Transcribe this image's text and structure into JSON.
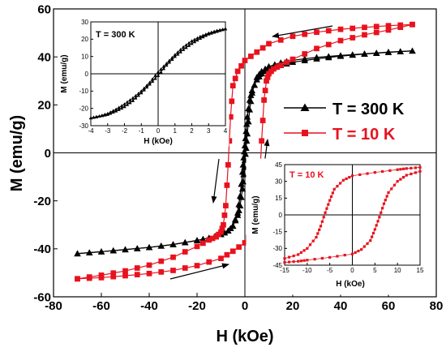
{
  "chart_data": [
    {
      "id": "main",
      "type": "line",
      "xlabel": "H (kOe)",
      "ylabel": "M (emu/g)",
      "xlim": [
        -80,
        80
      ],
      "ylim": [
        -60,
        60
      ],
      "xticks": [
        "-80",
        "-60",
        "-40",
        "-20",
        "0",
        "20",
        "40",
        "60",
        "80"
      ],
      "yticks": [
        "60",
        "40",
        "20",
        "0",
        "-20",
        "-40",
        "-60"
      ],
      "zero_lines": true,
      "grid": false,
      "legend_position": "right-middle",
      "series": [
        {
          "name": "T = 300 K",
          "color": "#000000",
          "marker": "triangle",
          "descending": [
            [
              70,
              42.5
            ],
            [
              60,
              42
            ],
            [
              50,
              41.3
            ],
            [
              40,
              40.6
            ],
            [
              30,
              39.8
            ],
            [
              20,
              38.6
            ],
            [
              15,
              37.6
            ],
            [
              10,
              36
            ],
            [
              7,
              34
            ],
            [
              5,
              31.5
            ],
            [
              3,
              25
            ],
            [
              2,
              18
            ],
            [
              1,
              8
            ],
            [
              0.5,
              2
            ],
            [
              0,
              -3
            ],
            [
              -0.5,
              -9
            ],
            [
              -1,
              -15
            ],
            [
              -2,
              -22
            ],
            [
              -3,
              -26
            ],
            [
              -5,
              -30.5
            ],
            [
              -7,
              -32.5
            ],
            [
              -10,
              -34
            ],
            [
              -15,
              -35.5
            ],
            [
              -20,
              -36.5
            ],
            [
              -30,
              -38.2
            ],
            [
              -40,
              -39.4
            ],
            [
              -50,
              -40.3
            ],
            [
              -60,
              -41.2
            ],
            [
              -70,
              -42
            ]
          ],
          "ascending": [
            [
              -70,
              -42
            ],
            [
              -60,
              -41.2
            ],
            [
              -50,
              -40.3
            ],
            [
              -40,
              -39.4
            ],
            [
              -30,
              -38.2
            ],
            [
              -20,
              -36.5
            ],
            [
              -15,
              -35.5
            ],
            [
              -10,
              -34
            ],
            [
              -7,
              -32.5
            ],
            [
              -5,
              -30.5
            ],
            [
              -3,
              -25
            ],
            [
              -2,
              -18
            ],
            [
              -1,
              -8
            ],
            [
              -0.5,
              -2
            ],
            [
              0,
              3
            ],
            [
              0.5,
              9
            ],
            [
              1,
              15
            ],
            [
              2,
              22
            ],
            [
              3,
              26
            ],
            [
              5,
              30.5
            ],
            [
              7,
              33
            ],
            [
              10,
              35
            ],
            [
              15,
              36.5
            ],
            [
              20,
              37.8
            ],
            [
              30,
              39.2
            ],
            [
              40,
              40.3
            ],
            [
              50,
              41.2
            ],
            [
              60,
              41.9
            ],
            [
              70,
              42.5
            ]
          ]
        },
        {
          "name": "T = 10 K",
          "color": "#e8121e",
          "marker": "square",
          "descending": [
            [
              70,
              53.5
            ],
            [
              60,
              53
            ],
            [
              50,
              52.3
            ],
            [
              40,
              51.5
            ],
            [
              30,
              50.3
            ],
            [
              20,
              48.6
            ],
            [
              10,
              45.5
            ],
            [
              5,
              42
            ],
            [
              0,
              38.5
            ],
            [
              -3,
              34
            ],
            [
              -5,
              28
            ],
            [
              -6,
              15
            ],
            [
              -7,
              -5
            ],
            [
              -8,
              -22
            ],
            [
              -9,
              -30
            ],
            [
              -10,
              -33
            ],
            [
              -12,
              -35
            ],
            [
              -15,
              -36.3
            ],
            [
              -20,
              -39
            ],
            [
              -30,
              -43.5
            ],
            [
              -40,
              -46.8
            ],
            [
              -50,
              -49.2
            ],
            [
              -60,
              -51
            ],
            [
              -70,
              -52.5
            ]
          ],
          "ascending": [
            [
              -70,
              -52.5
            ],
            [
              -60,
              -52
            ],
            [
              -50,
              -51.2
            ],
            [
              -40,
              -50.3
            ],
            [
              -30,
              -49
            ],
            [
              -20,
              -47
            ],
            [
              -10,
              -44
            ],
            [
              -5,
              -41
            ],
            [
              0,
              -37.5
            ],
            [
              3,
              -33
            ],
            [
              5,
              -27
            ],
            [
              6,
              -15
            ],
            [
              7,
              5
            ],
            [
              8,
              22
            ],
            [
              9,
              30
            ],
            [
              10,
              33
            ],
            [
              12,
              35
            ],
            [
              15,
              36.5
            ],
            [
              20,
              39
            ],
            [
              30,
              43.5
            ],
            [
              40,
              46.8
            ],
            [
              50,
              49.2
            ],
            [
              60,
              51.2
            ],
            [
              70,
              53.5
            ]
          ]
        }
      ],
      "legend": [
        {
          "label": "T = 300 K",
          "color": "#000000",
          "marker": "triangle"
        },
        {
          "label": "T = 10 K",
          "color": "#e8121e",
          "marker": "square"
        }
      ],
      "annotations": [
        "arrow top-right pointing left",
        "arrow bottom pointing right",
        "arrow left pointing down",
        "arrow right pointing up"
      ]
    },
    {
      "id": "inset_300K",
      "type": "line",
      "title": "T = 300 K",
      "xlabel": "H (kOe)",
      "ylabel": "M (emu/g)",
      "xlim": [
        -4,
        4
      ],
      "ylim": [
        -30,
        30
      ],
      "xticks": [
        "-4",
        "-3",
        "-2",
        "-1",
        "0",
        "1",
        "2",
        "3",
        "4"
      ],
      "yticks": [
        "30",
        "20",
        "10",
        "0",
        "-10",
        "-20",
        "-30"
      ],
      "series": [
        {
          "name": "T = 300 K",
          "color": "#000000",
          "marker": "triangle",
          "descending": [
            [
              4,
              26
            ],
            [
              3.5,
              25
            ],
            [
              3,
              23.5
            ],
            [
              2.5,
              21.5
            ],
            [
              2,
              19
            ],
            [
              1.5,
              15.5
            ],
            [
              1,
              11
            ],
            [
              0.5,
              6
            ],
            [
              0,
              1
            ],
            [
              -0.5,
              -5
            ],
            [
              -1,
              -10
            ],
            [
              -1.5,
              -14
            ],
            [
              -2,
              -17.5
            ],
            [
              -2.5,
              -20.5
            ],
            [
              -3,
              -23
            ],
            [
              -3.5,
              -24.5
            ],
            [
              -4,
              -25.5
            ]
          ],
          "ascending": [
            [
              -4,
              -25.5
            ],
            [
              -3.5,
              -24.5
            ],
            [
              -3,
              -23.5
            ],
            [
              -2.5,
              -21.5
            ],
            [
              -2,
              -19
            ],
            [
              -1.5,
              -15.5
            ],
            [
              -1,
              -11
            ],
            [
              -0.5,
              -6
            ],
            [
              0,
              -1
            ],
            [
              0.5,
              5
            ],
            [
              1,
              10
            ],
            [
              1.5,
              14
            ],
            [
              2,
              17.5
            ],
            [
              2.5,
              20.5
            ],
            [
              3,
              23
            ],
            [
              3.5,
              24.5
            ],
            [
              4,
              26
            ]
          ]
        }
      ]
    },
    {
      "id": "inset_10K",
      "type": "line",
      "title": "T = 10 K",
      "xlabel": "H (kOe)",
      "ylabel": "M (emu/g)",
      "xlim": [
        -15,
        15
      ],
      "ylim": [
        -45,
        45
      ],
      "xticks": [
        "-15",
        "-10",
        "-5",
        "0",
        "5",
        "10",
        "15"
      ],
      "yticks": [
        "45",
        "30",
        "15",
        "0",
        "-15",
        "-30",
        "-45"
      ],
      "series": [
        {
          "name": "T = 10 K",
          "color": "#e8121e",
          "marker": "square",
          "descending": [
            [
              15,
              42.5
            ],
            [
              12,
              41.5
            ],
            [
              10,
              40.5
            ],
            [
              5,
              38
            ],
            [
              0,
              35
            ],
            [
              -2,
              31
            ],
            [
              -4,
              23
            ],
            [
              -5,
              13
            ],
            [
              -6,
              2
            ],
            [
              -7,
              -10
            ],
            [
              -8,
              -20
            ],
            [
              -10,
              -30
            ],
            [
              -12,
              -35.5
            ],
            [
              -15,
              -39
            ]
          ],
          "ascending": [
            [
              -15,
              -42.5
            ],
            [
              -12,
              -41.5
            ],
            [
              -10,
              -40.5
            ],
            [
              -5,
              -38
            ],
            [
              0,
              -35
            ],
            [
              2,
              -31
            ],
            [
              4,
              -23
            ],
            [
              5,
              -13
            ],
            [
              6,
              -2
            ],
            [
              7,
              10
            ],
            [
              8,
              20
            ],
            [
              10,
              30
            ],
            [
              12,
              35.5
            ],
            [
              15,
              39
            ]
          ]
        }
      ]
    }
  ]
}
